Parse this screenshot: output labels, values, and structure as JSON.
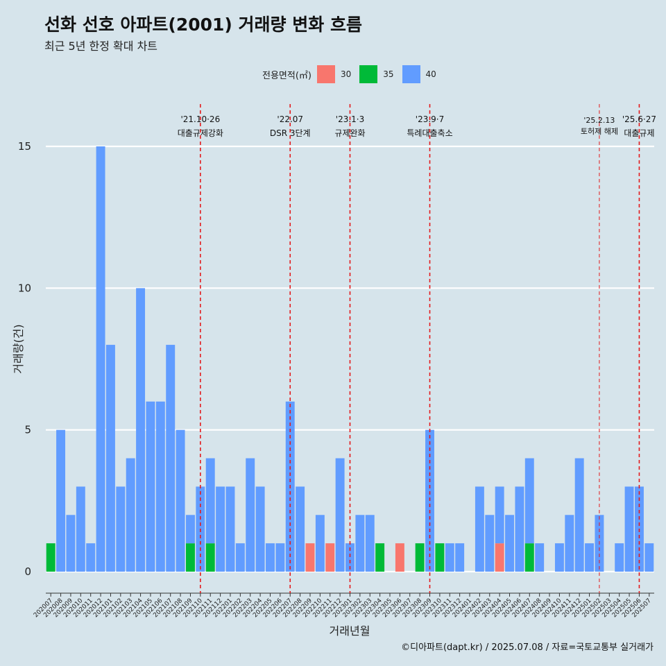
{
  "title": "선화 선호 아파트(2001) 거래량 변화 흐름",
  "subtitle": "최근 5년 한정 확대 차트",
  "caption": "©디아파트(dapt.kr) / 2025.07.08 / 자료=국토교통부 실거래가",
  "legend": {
    "title": "전용면적(㎡)",
    "items": [
      {
        "label": "30",
        "color": "#f8766d"
      },
      {
        "label": "35",
        "color": "#00ba38"
      },
      {
        "label": "40",
        "color": "#619cff"
      }
    ]
  },
  "chart_data": {
    "type": "bar",
    "stacked": true,
    "xlabel": "거래년월",
    "ylabel": "거래량(건)",
    "ylim": [
      0,
      15
    ],
    "yticks": [
      0,
      5,
      10,
      15
    ],
    "months": [
      "202007",
      "202008",
      "202009",
      "202010",
      "202011",
      "202012",
      "202101",
      "202102",
      "202103",
      "202104",
      "202105",
      "202106",
      "202107",
      "202108",
      "202109",
      "202110",
      "202111",
      "202112",
      "202201",
      "202202",
      "202203",
      "202204",
      "202205",
      "202206",
      "202207",
      "202208",
      "202209",
      "202210",
      "202211",
      "202212",
      "202301",
      "202302",
      "202303",
      "202304",
      "202305",
      "202306",
      "202307",
      "202308",
      "202309",
      "202310",
      "202311",
      "202312",
      "202401",
      "202402",
      "202403",
      "202404",
      "202405",
      "202406",
      "202407",
      "202408",
      "202409",
      "202410",
      "202411",
      "202412",
      "202501",
      "202502",
      "202503",
      "202504",
      "202505",
      "202506",
      "202507"
    ],
    "xtick_labels": [
      "202007",
      "202008",
      "202009",
      "202010",
      "202011",
      "202012",
      "202101",
      "202102",
      "202103",
      "202104",
      "202105",
      "202106",
      "202107",
      "202108",
      "202109",
      "202110",
      "202111",
      "202112",
      "202201",
      "202202",
      "202203",
      "202204",
      "202205",
      "202206",
      "202207",
      "202208",
      "202209",
      "202210",
      "202211",
      "202212",
      "202301",
      "202302",
      "202303",
      "202304",
      "202305",
      "202306",
      "202307",
      "202308",
      "202309",
      "202310",
      "202311",
      "202312",
      "202401",
      "202402",
      "202403",
      "202404",
      "202405",
      "202406",
      "202407",
      "202408",
      "202409",
      "202410",
      "202411",
      "202412",
      "202501",
      "202502",
      "202503",
      "202504",
      "202505",
      "202506",
      "202507"
    ],
    "bars": [
      {
        "x": "202007",
        "segments": [
          {
            "size": "35",
            "value": 1
          }
        ]
      },
      {
        "x": "202008",
        "segments": [
          {
            "size": "40",
            "value": 5
          }
        ]
      },
      {
        "x": "202009",
        "segments": [
          {
            "size": "40",
            "value": 2
          }
        ]
      },
      {
        "x": "202010",
        "segments": [
          {
            "size": "40",
            "value": 3
          }
        ]
      },
      {
        "x": "202011",
        "segments": [
          {
            "size": "40",
            "value": 1
          }
        ]
      },
      {
        "x": "202012",
        "segments": [
          {
            "size": "40",
            "value": 15
          }
        ]
      },
      {
        "x": "202101",
        "segments": [
          {
            "size": "40",
            "value": 8
          }
        ]
      },
      {
        "x": "202102",
        "segments": [
          {
            "size": "40",
            "value": 3
          }
        ]
      },
      {
        "x": "202103",
        "segments": [
          {
            "size": "40",
            "value": 4
          }
        ]
      },
      {
        "x": "202104",
        "segments": [
          {
            "size": "40",
            "value": 10
          }
        ]
      },
      {
        "x": "202105",
        "segments": [
          {
            "size": "40",
            "value": 6
          }
        ]
      },
      {
        "x": "202106",
        "segments": [
          {
            "size": "40",
            "value": 6
          }
        ]
      },
      {
        "x": "202107",
        "segments": [
          {
            "size": "40",
            "value": 8
          }
        ]
      },
      {
        "x": "202108",
        "segments": [
          {
            "size": "40",
            "value": 5
          }
        ]
      },
      {
        "x": "202109",
        "segments": [
          {
            "size": "35",
            "value": 1
          },
          {
            "size": "40",
            "value": 1
          }
        ]
      },
      {
        "x": "202110",
        "segments": [
          {
            "size": "40",
            "value": 3
          }
        ]
      },
      {
        "x": "202111",
        "segments": [
          {
            "size": "35",
            "value": 1
          },
          {
            "size": "40",
            "value": 3
          }
        ]
      },
      {
        "x": "202112",
        "segments": [
          {
            "size": "40",
            "value": 3
          }
        ]
      },
      {
        "x": "202201",
        "segments": [
          {
            "size": "40",
            "value": 3
          }
        ]
      },
      {
        "x": "202202",
        "segments": [
          {
            "size": "40",
            "value": 1
          }
        ]
      },
      {
        "x": "202203",
        "segments": [
          {
            "size": "40",
            "value": 4
          }
        ]
      },
      {
        "x": "202204",
        "segments": [
          {
            "size": "40",
            "value": 3
          }
        ]
      },
      {
        "x": "202205",
        "segments": [
          {
            "size": "40",
            "value": 1
          }
        ]
      },
      {
        "x": "202206",
        "segments": [
          {
            "size": "40",
            "value": 1
          }
        ]
      },
      {
        "x": "202207",
        "segments": [
          {
            "size": "40",
            "value": 6
          }
        ]
      },
      {
        "x": "202208",
        "segments": [
          {
            "size": "40",
            "value": 3
          }
        ]
      },
      {
        "x": "202209",
        "segments": [
          {
            "size": "30",
            "value": 1
          }
        ]
      },
      {
        "x": "202210",
        "segments": [
          {
            "size": "40",
            "value": 2
          }
        ]
      },
      {
        "x": "202211",
        "segments": [
          {
            "size": "30",
            "value": 1
          }
        ]
      },
      {
        "x": "202212",
        "segments": [
          {
            "size": "40",
            "value": 4
          }
        ]
      },
      {
        "x": "202301",
        "segments": [
          {
            "size": "40",
            "value": 1
          }
        ]
      },
      {
        "x": "202302",
        "segments": [
          {
            "size": "40",
            "value": 2
          }
        ]
      },
      {
        "x": "202303",
        "segments": [
          {
            "size": "40",
            "value": 2
          }
        ]
      },
      {
        "x": "202304",
        "segments": [
          {
            "size": "35",
            "value": 1
          }
        ]
      },
      {
        "x": "202305",
        "segments": []
      },
      {
        "x": "202306",
        "segments": [
          {
            "size": "30",
            "value": 1
          }
        ]
      },
      {
        "x": "202307",
        "segments": []
      },
      {
        "x": "202308",
        "segments": [
          {
            "size": "35",
            "value": 1
          }
        ]
      },
      {
        "x": "202309",
        "segments": [
          {
            "size": "40",
            "value": 5
          }
        ]
      },
      {
        "x": "202310",
        "segments": [
          {
            "size": "35",
            "value": 1
          }
        ]
      },
      {
        "x": "202311",
        "segments": [
          {
            "size": "40",
            "value": 1
          }
        ]
      },
      {
        "x": "202312",
        "segments": [
          {
            "size": "40",
            "value": 1
          }
        ]
      },
      {
        "x": "202401",
        "segments": []
      },
      {
        "x": "202402",
        "segments": [
          {
            "size": "40",
            "value": 3
          }
        ]
      },
      {
        "x": "202403",
        "segments": [
          {
            "size": "40",
            "value": 2
          }
        ]
      },
      {
        "x": "202404",
        "segments": [
          {
            "size": "30",
            "value": 1
          },
          {
            "size": "40",
            "value": 2
          }
        ]
      },
      {
        "x": "202405",
        "segments": [
          {
            "size": "40",
            "value": 2
          }
        ]
      },
      {
        "x": "202406",
        "segments": [
          {
            "size": "40",
            "value": 3
          }
        ]
      },
      {
        "x": "202407",
        "segments": [
          {
            "size": "35",
            "value": 1
          },
          {
            "size": "40",
            "value": 3
          }
        ]
      },
      {
        "x": "202408",
        "segments": [
          {
            "size": "40",
            "value": 1
          }
        ]
      },
      {
        "x": "202409",
        "segments": []
      },
      {
        "x": "202410",
        "segments": [
          {
            "size": "40",
            "value": 1
          }
        ]
      },
      {
        "x": "202411",
        "segments": [
          {
            "size": "40",
            "value": 2
          }
        ]
      },
      {
        "x": "202412",
        "segments": [
          {
            "size": "40",
            "value": 4
          }
        ]
      },
      {
        "x": "202501",
        "segments": [
          {
            "size": "40",
            "value": 1
          }
        ]
      },
      {
        "x": "202502",
        "segments": [
          {
            "size": "40",
            "value": 2
          }
        ]
      },
      {
        "x": "202503",
        "segments": []
      },
      {
        "x": "202504",
        "segments": [
          {
            "size": "40",
            "value": 1
          }
        ]
      },
      {
        "x": "202505",
        "segments": [
          {
            "size": "40",
            "value": 3
          }
        ]
      },
      {
        "x": "202506",
        "segments": [
          {
            "size": "40",
            "value": 3
          }
        ]
      },
      {
        "x": "202507",
        "segments": [
          {
            "size": "40",
            "value": 1
          }
        ]
      }
    ],
    "events": [
      {
        "x": "202110",
        "date_label": "'21.10·26",
        "label": "대출규제강화"
      },
      {
        "x": "202207",
        "date_label": "'22.07",
        "label": "DSR 3단계"
      },
      {
        "x": "202301",
        "date_label": "'23.1·3",
        "label": "규제완화"
      },
      {
        "x": "202309",
        "date_label": "'23.9·7",
        "label": "특례대출축소"
      },
      {
        "x": "202502",
        "date_label": "'25.2.13",
        "label": "토허제 해제",
        "small": true
      },
      {
        "x": "202506",
        "date_label": "'25.6·27",
        "label": "대출규제"
      }
    ],
    "grid": true,
    "legend_position": "top"
  }
}
